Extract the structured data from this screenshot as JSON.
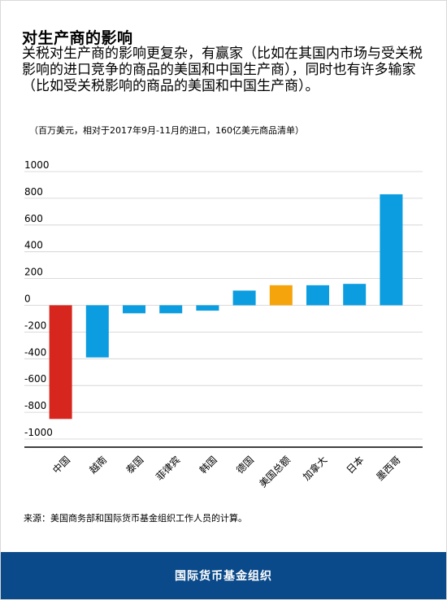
{
  "title": "对生产商的影响",
  "subtitle": "关税对生产商的影响更复杂，有赢家（比如在其国内市场与受关税影响的进口竞争的商品的美国和中国生产商），同时也有许多输家（比如受关税影响的商品的美国和中国生产商）。",
  "note": "（百万美元，相对于2017年9月-11月的进口，160亿美元商品清单）",
  "source": "来源：美国商务部和国际货币基金组织工作人员的计算。",
  "footer": "国际货币基金组织",
  "colors": {
    "red": "#d7261e",
    "blue": "#0b9de0",
    "gold": "#f5a50b",
    "footer": "#0b4a8a"
  },
  "chart_data": {
    "type": "bar",
    "categories": [
      "中国",
      "越南",
      "泰国",
      "菲律宾",
      "韩国",
      "德国",
      "美国总额",
      "加拿大",
      "日本",
      "墨西哥"
    ],
    "values": [
      -850,
      -390,
      -60,
      -60,
      -40,
      110,
      150,
      150,
      160,
      830
    ],
    "bar_colors": [
      "red",
      "blue",
      "blue",
      "blue",
      "blue",
      "blue",
      "gold",
      "blue",
      "blue",
      "blue"
    ],
    "ylim": [
      -1000,
      1000
    ],
    "yticks": [
      1000,
      800,
      600,
      400,
      200,
      0,
      -200,
      -400,
      -600,
      -800,
      -1000
    ],
    "grid": true
  }
}
